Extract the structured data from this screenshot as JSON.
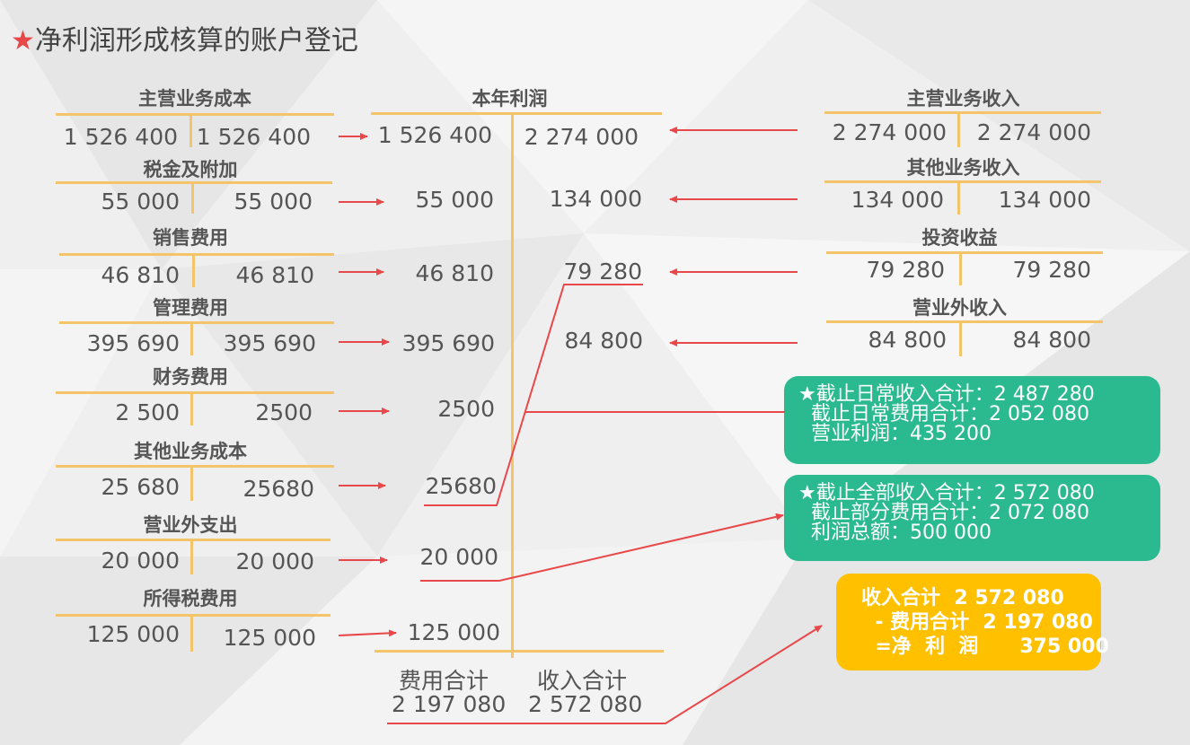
{
  "title": {
    "star": "★",
    "text": "净利润形成核算的账户登记"
  },
  "left_accounts": [
    {
      "name": "主营业务成本",
      "debit": "1 526 400",
      "credit": "1 526 400"
    },
    {
      "name": "税金及附加",
      "debit": "55 000",
      "credit": "55 000"
    },
    {
      "name": "销售费用",
      "debit": "46 810",
      "credit": "46 810"
    },
    {
      "name": "管理费用",
      "debit": "395 690",
      "credit": "395 690"
    },
    {
      "name": "财务费用",
      "debit": "2 500",
      "credit": "2500"
    },
    {
      "name": "其他业务成本",
      "debit": "25 680",
      "credit": "25680"
    },
    {
      "name": "营业外支出",
      "debit": "20 000",
      "credit": "20 000"
    },
    {
      "name": "所得税费用",
      "debit": "125 000",
      "credit": "125 000"
    }
  ],
  "profit_account": {
    "name": "本年利润",
    "debits": [
      "1 526 400",
      "55 000",
      "46 810",
      "395 690",
      "2500",
      "25680",
      "20 000",
      "125 000"
    ],
    "credits": [
      "2 274 000",
      "134 000",
      "79 280",
      "84 800"
    ],
    "total_debit_label": "费用合计",
    "total_debit_value": "2 197 080",
    "total_credit_label": "收入合计",
    "total_credit_value": "2 572 080"
  },
  "right_accounts": [
    {
      "name": "主营业务收入",
      "debit": "2 274 000",
      "credit": "2 274 000"
    },
    {
      "name": "其他业务收入",
      "debit": "134 000",
      "credit": "134 000"
    },
    {
      "name": "投资收益",
      "debit": "79 280",
      "credit": "79 280"
    },
    {
      "name": "营业外收入",
      "debit": "84 800",
      "credit": "84 800"
    }
  ],
  "boxes": {
    "operating": [
      "★截止日常收入合计：2 487 280",
      "  截止日常费用合计：2 052 080",
      "  营业利润：435 200"
    ],
    "total": [
      "★截止全部收入合计：2 572 080",
      "  截止部分费用合计：2 072 080",
      "  利润总额：500 000"
    ],
    "net": [
      "收入合计  2 572 080",
      "  - 费用合计  2 197 080",
      "  =净  利  润      375 000"
    ]
  },
  "colors": {
    "accent": "#e8484a",
    "t_line": "#f3c46a",
    "green_box": "#2bb98f",
    "yellow_box": "#ffc000"
  }
}
